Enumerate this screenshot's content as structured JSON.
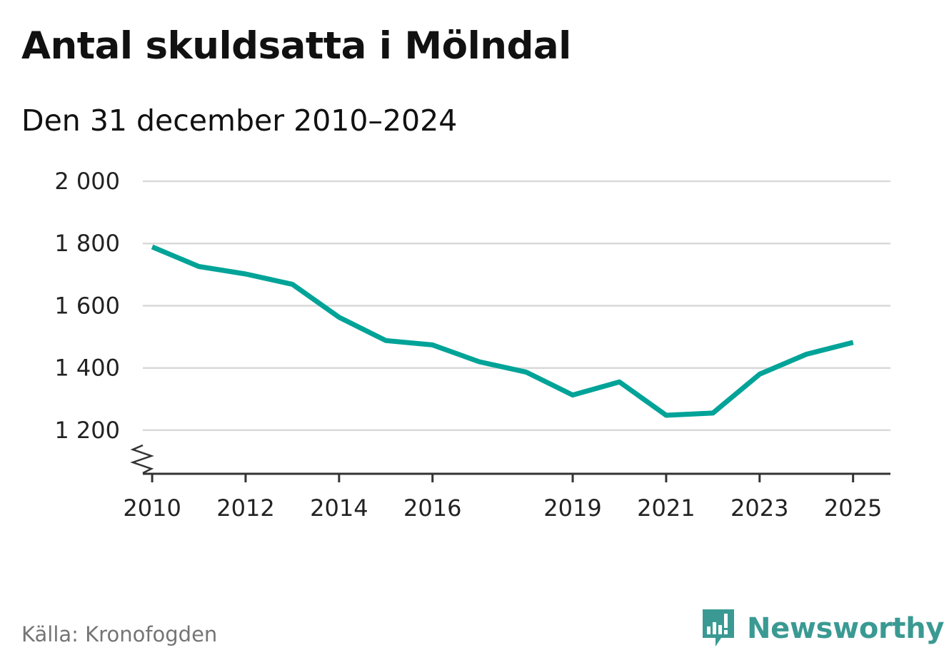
{
  "header": {
    "title": "Antal skuldsatta i Mölndal",
    "subtitle": "Den 31 december 2010–2024"
  },
  "footer": {
    "source": "Källa: Kronofogden",
    "brand": "Newsworthy",
    "brand_icon": "newsworthy-logo-icon"
  },
  "colors": {
    "line": "#00a398",
    "grid": "#d9d9d9",
    "axis": "#333333",
    "brand": "#3a9a93"
  },
  "chart_data": {
    "type": "line",
    "title": "Antal skuldsatta i Mölndal",
    "subtitle": "Den 31 december 2010–2024",
    "xlabel": "",
    "ylabel": "",
    "x": [
      2010,
      2011,
      2012,
      2013,
      2014,
      2015,
      2016,
      2017,
      2018,
      2019,
      2020,
      2021,
      2022,
      2023,
      2024,
      2025
    ],
    "xlim": [
      2009.8,
      2025.8
    ],
    "ylim": [
      1060,
      2000
    ],
    "y_axis_break": true,
    "grid": true,
    "x_ticks": [
      2010,
      2012,
      2014,
      2016,
      2019,
      2021,
      2023,
      2025
    ],
    "x_tick_labels": [
      "2010",
      "2012",
      "2014",
      "2016",
      "2019",
      "2021",
      "2023",
      "2025"
    ],
    "y_ticks": [
      1200,
      1400,
      1600,
      1800,
      2000
    ],
    "y_tick_labels": [
      "1 200",
      "1 400",
      "1 600",
      "1 800",
      "2 000"
    ],
    "series": [
      {
        "name": "Antal skuldsatta",
        "values": [
          1789,
          1726,
          1702,
          1669,
          1563,
          1488,
          1474,
          1420,
          1387,
          1313,
          1355,
          1248,
          1255,
          1380,
          1444,
          1482
        ]
      }
    ]
  }
}
